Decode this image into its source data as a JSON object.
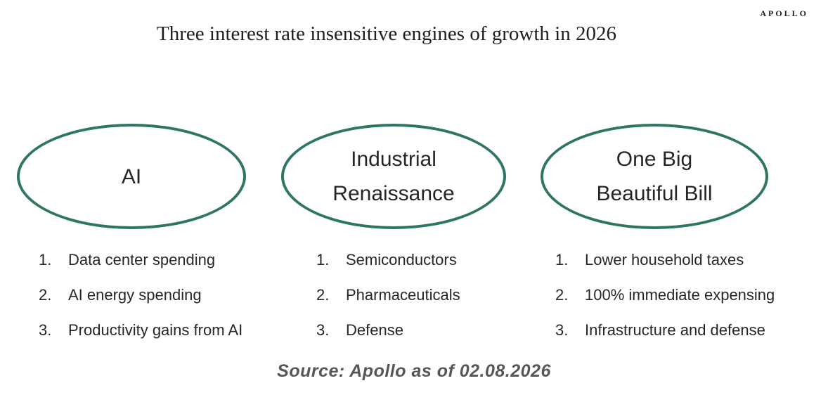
{
  "header": {
    "title": "Three interest rate insensitive engines of growth in 2026",
    "logo": "APOLLO"
  },
  "list_numbers": [
    "1.",
    "2.",
    "3."
  ],
  "engines": [
    {
      "label_lines": [
        "AI"
      ],
      "items": [
        "Data center spending",
        "AI energy spending",
        "Productivity gains from AI"
      ]
    },
    {
      "label_lines": [
        "Industrial",
        "Renaissance"
      ],
      "items": [
        "Semiconductors",
        "Pharmaceuticals",
        "Defense"
      ]
    },
    {
      "label_lines": [
        "One Big",
        "Beautiful Bill"
      ],
      "items": [
        "Lower household taxes",
        "100% immediate expensing",
        "Infrastructure and defense"
      ]
    }
  ],
  "footer": {
    "source": "Source: Apollo as of 02.08.2026"
  },
  "colors": {
    "ellipse_stroke": "#2F7565",
    "title_text": "#1f1f1f",
    "body_text": "#262626",
    "source_text": "#575757"
  }
}
